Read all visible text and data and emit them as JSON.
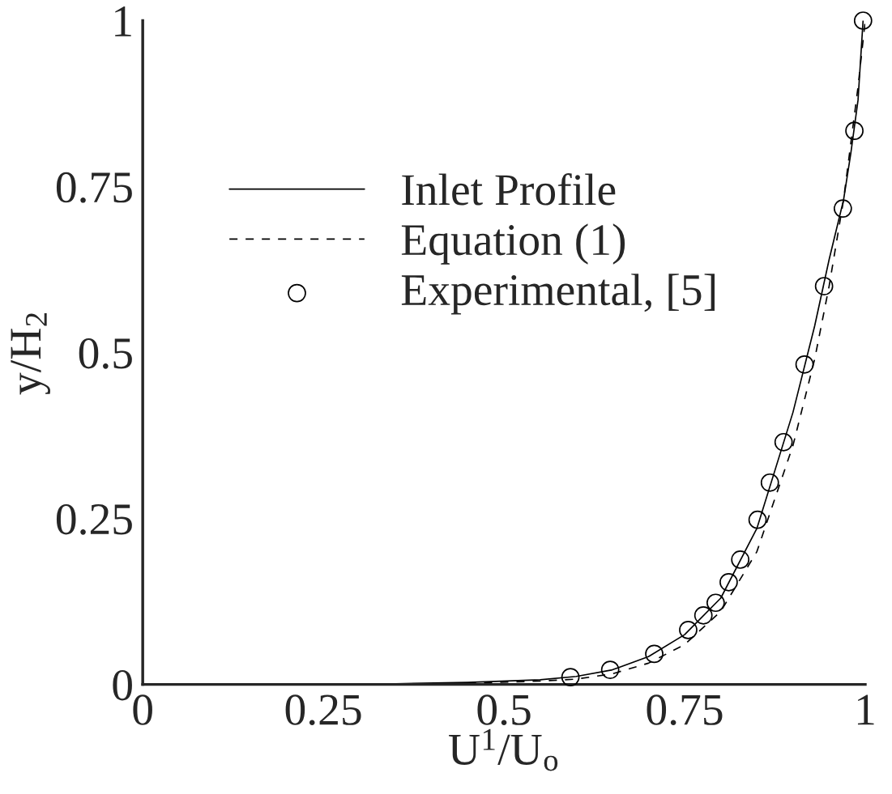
{
  "chart_data": {
    "type": "line",
    "xlabel": "U$^{1}$/U$_{o}$",
    "ylabel": "y/H$_{2}$",
    "xlim": [
      0,
      1
    ],
    "ylim": [
      0,
      1
    ],
    "xticks": [
      0,
      0.25,
      0.5,
      0.75,
      1
    ],
    "yticks": [
      0,
      0.25,
      0.5,
      0.75,
      1
    ],
    "grid": false,
    "legend": "top left",
    "series": [
      {
        "name": "Inlet Profile",
        "line_style": "solid",
        "color": "#000000",
        "x": [
          0.35,
          0.45,
          0.55,
          0.6,
          0.65,
          0.7,
          0.75,
          0.8,
          0.85,
          0.9,
          0.93,
          0.95,
          0.97,
          0.98,
          0.99,
          0.997
        ],
        "values": [
          0.001,
          0.003,
          0.007,
          0.012,
          0.022,
          0.042,
          0.075,
          0.13,
          0.235,
          0.41,
          0.54,
          0.64,
          0.73,
          0.8,
          0.88,
          1.0
        ]
      },
      {
        "name": "Equation (1)",
        "line_style": "dashed",
        "color": "#000000",
        "x": [
          0.45,
          0.55,
          0.6,
          0.65,
          0.7,
          0.75,
          0.8,
          0.85,
          0.9,
          0.93,
          0.95,
          0.97,
          0.99,
          1.0
        ],
        "values": [
          0.002,
          0.005,
          0.008,
          0.016,
          0.032,
          0.06,
          0.11,
          0.2,
          0.36,
          0.49,
          0.6,
          0.73,
          0.9,
          1.0
        ]
      },
      {
        "name": "Experimental, [5]",
        "type": "scatter",
        "marker": "circle",
        "color": "#000000",
        "x": [
          0.592,
          0.647,
          0.708,
          0.755,
          0.776,
          0.793,
          0.811,
          0.827,
          0.851,
          0.868,
          0.887,
          0.916,
          0.943,
          0.969,
          0.985,
          0.997
        ],
        "values": [
          0.011,
          0.022,
          0.046,
          0.082,
          0.104,
          0.123,
          0.154,
          0.188,
          0.248,
          0.304,
          0.365,
          0.482,
          0.6,
          0.717,
          0.834,
          1.0
        ]
      }
    ]
  }
}
